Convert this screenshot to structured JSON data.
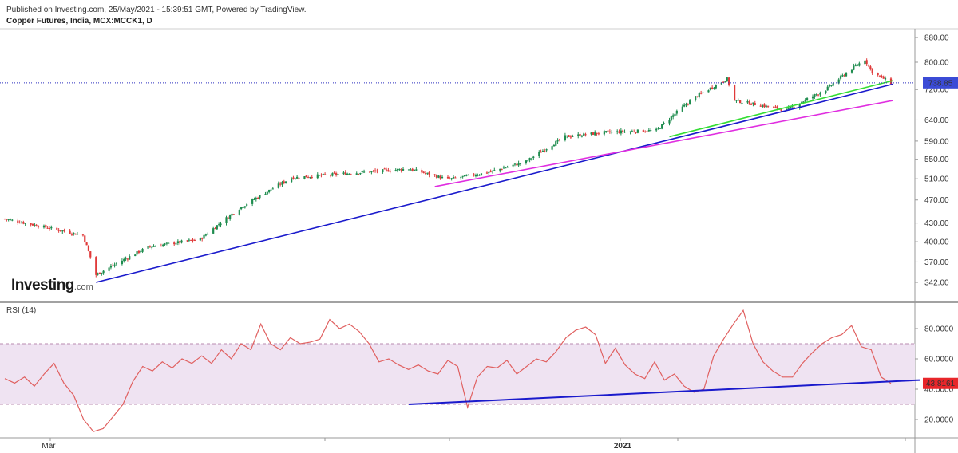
{
  "header": {
    "published": "Published on Investing.com, 25/May/2021 - 15:39:51 GMT, Powered by TradingView.",
    "instrument": "Copper Futures, India, MCX:MCCK1, D"
  },
  "logo": {
    "main": "Investing",
    "suffix": ".com"
  },
  "colors": {
    "up": "#1e8c4e",
    "down": "#e03a3a",
    "price_line": "#2b2fbf",
    "rsi": "#e06060",
    "rsi_band": "#efe3f2",
    "price_badge": "#3b4bd6",
    "rsi_badge": "#e8262a",
    "trend_blue": "#1a1acc",
    "trend_magenta": "#e02ee0",
    "trend_green": "#33dd33"
  },
  "chart_data": [
    {
      "type": "candlestick",
      "title": "Copper Futures, India, MCX:MCCK1, D",
      "y_ticks": [
        "880.00",
        "800.00",
        "720.00",
        "640.00",
        "590.00",
        "550.00",
        "510.00",
        "470.00",
        "430.00",
        "400.00",
        "370.00",
        "342.00"
      ],
      "log_scale": true,
      "x_labels": [
        "Mar",
        "2021"
      ],
      "last_price": "738.85",
      "dates": [
        "2020-02-03",
        "2020-03-16",
        "2020-03-23",
        "2020-04-20",
        "2020-05-18",
        "2020-06-08",
        "2020-07-06",
        "2020-08-03",
        "2020-09-07",
        "2020-09-28",
        "2020-10-19",
        "2020-11-09",
        "2020-11-30",
        "2020-12-21",
        "2021-01-18",
        "2021-02-08",
        "2021-02-25",
        "2021-03-01",
        "2021-03-29",
        "2021-04-19",
        "2021-05-03",
        "2021-05-10",
        "2021-05-14",
        "2021-05-24"
      ],
      "close": [
        437,
        410,
        352,
        392,
        404,
        455,
        512,
        520,
        530,
        509,
        522,
        545,
        600,
        610,
        615,
        700,
        750,
        690,
        665,
        720,
        780,
        808,
        770,
        738.85
      ],
      "trendlines": [
        {
          "color": "blue",
          "from": [
            "2020-03-23",
            342
          ],
          "to": [
            "2021-05-25",
            735
          ]
        },
        {
          "color": "magenta",
          "from": [
            "2020-09-21",
            495
          ],
          "to": [
            "2021-05-25",
            690
          ]
        },
        {
          "color": "green",
          "from": [
            "2021-01-25",
            600
          ],
          "to": [
            "2021-05-25",
            745
          ]
        }
      ]
    },
    {
      "type": "line",
      "title": "RSI (14)",
      "y_ticks": [
        "80.0000",
        "60.0000",
        "40.0000",
        "20.0000"
      ],
      "ylim": [
        20,
        80
      ],
      "bands": [
        30,
        70
      ],
      "last_value": "43.8161",
      "values": [
        47,
        44,
        48,
        42,
        50,
        57,
        44,
        36,
        20,
        12,
        14,
        22,
        30,
        45,
        55,
        52,
        58,
        54,
        60,
        57,
        62,
        57,
        66,
        60,
        70,
        66,
        83,
        70,
        66,
        74,
        70,
        71,
        73,
        86,
        80,
        83,
        78,
        70,
        58,
        60,
        56,
        53,
        56,
        52,
        50,
        59,
        55,
        28,
        48,
        55,
        54,
        59,
        50,
        55,
        60,
        58,
        65,
        74,
        79,
        81,
        76,
        57,
        67,
        56,
        50,
        47,
        58,
        46,
        50,
        42,
        38,
        40,
        62,
        73,
        83,
        92,
        70,
        58,
        52,
        48,
        48,
        57,
        64,
        70,
        74,
        76,
        82,
        68,
        66,
        48,
        43.8161
      ],
      "trendlines": [
        {
          "color": "blue",
          "from": [
            "2020-09-07",
            30
          ],
          "to": [
            "2021-05-25",
            46
          ]
        }
      ]
    }
  ]
}
